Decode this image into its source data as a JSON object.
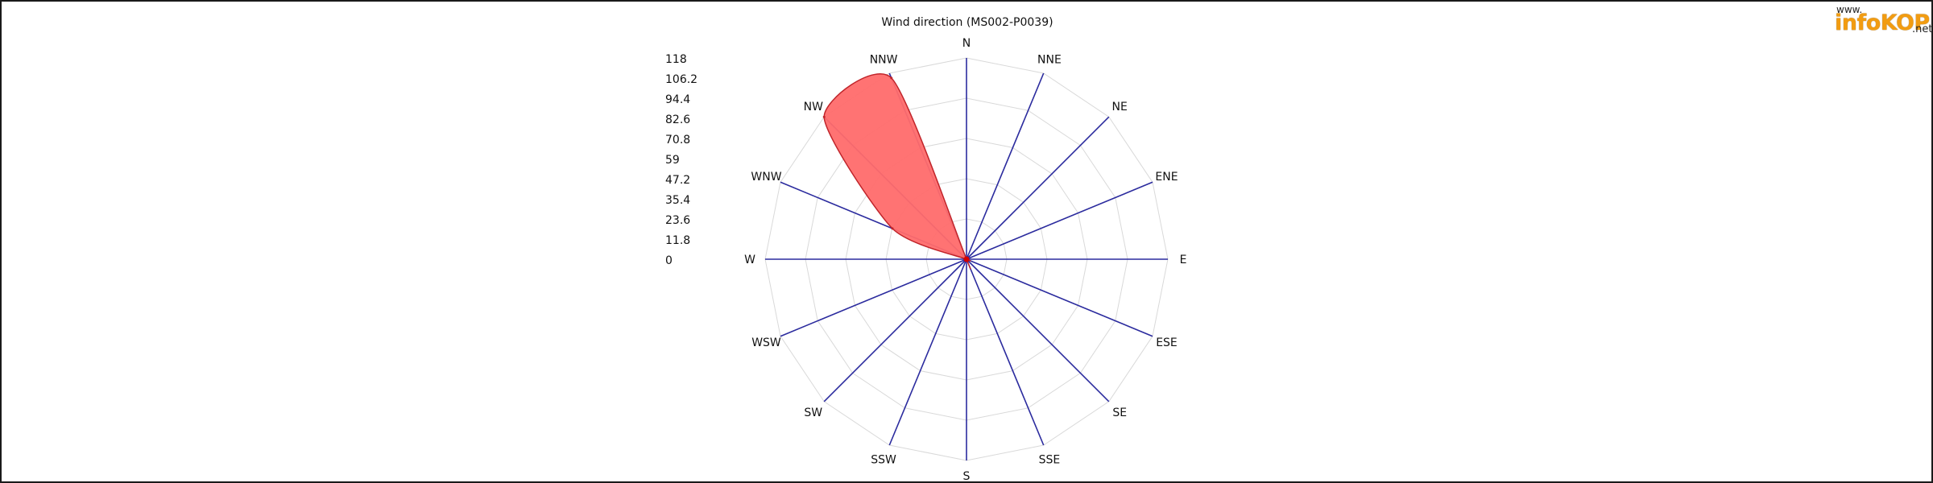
{
  "logo": {
    "prefix": "www.",
    "name": "infoKOP",
    "suffix": ".net"
  },
  "chart_data": {
    "type": "radar",
    "title": "Wind direction (MS002-P0039)",
    "directions": [
      "N",
      "NNE",
      "NE",
      "ENE",
      "E",
      "ESE",
      "SE",
      "SSE",
      "S",
      "SSW",
      "SW",
      "WSW",
      "W",
      "WNW",
      "NW",
      "NNW"
    ],
    "values": [
      0,
      0,
      0,
      0,
      0,
      0,
      0,
      0,
      0,
      0,
      0,
      0,
      0,
      47,
      118,
      115
    ],
    "scale_labels": [
      "118",
      "106.2",
      "94.4",
      "82.6",
      "70.8",
      "59",
      "47.2",
      "35.4",
      "23.6",
      "11.8",
      "0"
    ],
    "rmax": 118,
    "grid_rings": [
      23.6,
      47.2,
      70.8,
      94.4,
      118
    ],
    "grid": true,
    "colors": {
      "fill": "#ff6b6b",
      "stroke": "#c0242a",
      "spoke": "#2b2b9e",
      "grid": "#d9d9d9"
    }
  }
}
